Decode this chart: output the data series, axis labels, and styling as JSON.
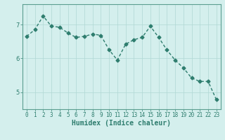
{
  "x": [
    0,
    1,
    2,
    3,
    4,
    5,
    6,
    7,
    8,
    9,
    10,
    11,
    12,
    13,
    14,
    15,
    16,
    17,
    18,
    19,
    20,
    21,
    22,
    23
  ],
  "y": [
    6.65,
    6.85,
    7.25,
    6.95,
    6.92,
    6.75,
    6.62,
    6.65,
    6.72,
    6.68,
    6.25,
    5.95,
    6.42,
    6.55,
    6.62,
    6.95,
    6.62,
    6.25,
    5.95,
    5.72,
    5.42,
    5.32,
    5.32,
    4.78
  ],
  "line_color": "#2e7d6e",
  "marker": "D",
  "marker_size": 2.5,
  "linewidth": 1.0,
  "xlabel": "Humidex (Indice chaleur)",
  "xlabel_fontsize": 7,
  "yticks": [
    5,
    6,
    7
  ],
  "ylim": [
    4.5,
    7.6
  ],
  "xlim": [
    -0.5,
    23.5
  ],
  "xtick_labels": [
    "0",
    "1",
    "2",
    "3",
    "4",
    "5",
    "6",
    "7",
    "8",
    "9",
    "10",
    "11",
    "12",
    "13",
    "14",
    "15",
    "16",
    "17",
    "18",
    "19",
    "20",
    "21",
    "22",
    "23"
  ],
  "bg_color": "#d4efed",
  "grid_color": "#b0d8d4",
  "tick_fontsize": 5.5,
  "spine_color": "#5a9e90"
}
